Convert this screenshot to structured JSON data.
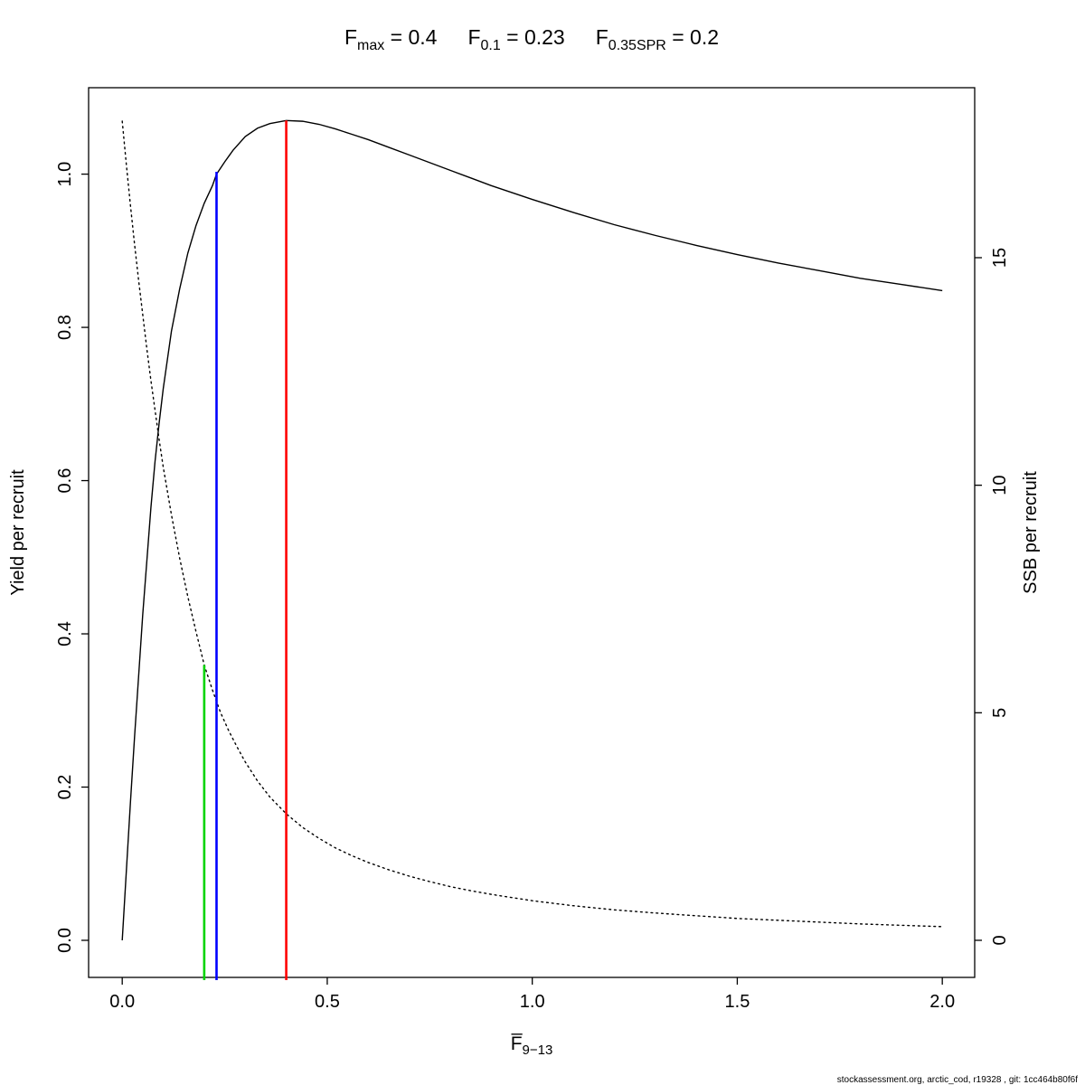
{
  "page": {
    "background": "#ffffff"
  },
  "footer": {
    "text": "stockassessment.org, arctic_cod, r19328 , git: 1cc464b80f6f"
  },
  "chart_data": {
    "type": "line",
    "title_parts": [
      {
        "base": "F",
        "sub": "max",
        "rest": " = 0.4"
      },
      {
        "base": "F",
        "sub": "0.1",
        "rest": " = 0.23"
      },
      {
        "base": "F",
        "sub": "0.35SPR",
        "rest": " = 0.2"
      }
    ],
    "reference_values": {
      "F_max": 0.4,
      "F_0.1": 0.23,
      "F_0.35SPR": 0.2
    },
    "x_axis": {
      "label_base": "F̅",
      "label_sub": "9−13",
      "ticks": [
        0,
        0.5,
        1,
        1.5,
        2
      ],
      "tick_labels": [
        "0.0",
        "0.5",
        "1.0",
        "1.5",
        "2.0"
      ],
      "range": [
        -0.082,
        2.079
      ]
    },
    "y_left": {
      "label": "Yield per recruit",
      "ticks": [
        0,
        0.2,
        0.4,
        0.6,
        0.8,
        1.0
      ],
      "tick_labels": [
        "0.0",
        "0.2",
        "0.4",
        "0.6",
        "0.8",
        "1.0"
      ],
      "range": [
        -0.0484,
        1.1128
      ]
    },
    "y_right": {
      "label": "SSB per recruit",
      "ticks": [
        0,
        5,
        10,
        15
      ],
      "tick_labels": [
        "0",
        "5",
        "10",
        "15"
      ],
      "range": [
        -0.815,
        18.735
      ]
    },
    "series": [
      {
        "name": "ssb-per-recruit",
        "axis": "right",
        "style": "dotted",
        "color": "#000000",
        "points": [
          [
            0,
            18
          ],
          [
            0.01,
            17.05
          ],
          [
            0.02,
            16.15
          ],
          [
            0.03,
            15.3
          ],
          [
            0.04,
            14.5
          ],
          [
            0.05,
            13.75
          ],
          [
            0.06,
            13.0
          ],
          [
            0.07,
            12.3
          ],
          [
            0.08,
            11.65
          ],
          [
            0.09,
            11.0
          ],
          [
            0.1,
            10.4
          ],
          [
            0.12,
            9.35
          ],
          [
            0.14,
            8.4
          ],
          [
            0.16,
            7.55
          ],
          [
            0.18,
            6.78
          ],
          [
            0.2,
            6.05
          ],
          [
            0.22,
            5.5
          ],
          [
            0.24,
            5.0
          ],
          [
            0.26,
            4.6
          ],
          [
            0.28,
            4.25
          ],
          [
            0.3,
            3.92
          ],
          [
            0.33,
            3.5
          ],
          [
            0.36,
            3.15
          ],
          [
            0.4,
            2.78
          ],
          [
            0.44,
            2.48
          ],
          [
            0.48,
            2.24
          ],
          [
            0.52,
            2.03
          ],
          [
            0.56,
            1.86
          ],
          [
            0.6,
            1.71
          ],
          [
            0.65,
            1.55
          ],
          [
            0.7,
            1.41
          ],
          [
            0.75,
            1.29
          ],
          [
            0.8,
            1.18
          ],
          [
            0.85,
            1.09
          ],
          [
            0.9,
            1.01
          ],
          [
            0.95,
            0.94
          ],
          [
            1,
            0.87
          ],
          [
            1.1,
            0.76
          ],
          [
            1.2,
            0.67
          ],
          [
            1.3,
            0.6
          ],
          [
            1.4,
            0.54
          ],
          [
            1.5,
            0.48
          ],
          [
            1.6,
            0.44
          ],
          [
            1.7,
            0.4
          ],
          [
            1.8,
            0.36
          ],
          [
            1.9,
            0.33
          ],
          [
            2,
            0.3
          ]
        ]
      },
      {
        "name": "yield-per-recruit",
        "axis": "left",
        "style": "solid",
        "color": "#000000",
        "points": [
          [
            0,
            0
          ],
          [
            0.01,
            0.09
          ],
          [
            0.02,
            0.18
          ],
          [
            0.03,
            0.265
          ],
          [
            0.04,
            0.345
          ],
          [
            0.05,
            0.425
          ],
          [
            0.06,
            0.495
          ],
          [
            0.07,
            0.565
          ],
          [
            0.08,
            0.625
          ],
          [
            0.09,
            0.675
          ],
          [
            0.1,
            0.72
          ],
          [
            0.12,
            0.795
          ],
          [
            0.14,
            0.85
          ],
          [
            0.16,
            0.897
          ],
          [
            0.18,
            0.933
          ],
          [
            0.2,
            0.962
          ],
          [
            0.22,
            0.985
          ],
          [
            0.23,
            1.0
          ],
          [
            0.25,
            1.016
          ],
          [
            0.27,
            1.031
          ],
          [
            0.3,
            1.049
          ],
          [
            0.33,
            1.06
          ],
          [
            0.36,
            1.066
          ],
          [
            0.4,
            1.07
          ],
          [
            0.44,
            1.069
          ],
          [
            0.48,
            1.065
          ],
          [
            0.52,
            1.059
          ],
          [
            0.56,
            1.052
          ],
          [
            0.6,
            1.045
          ],
          [
            0.65,
            1.035
          ],
          [
            0.7,
            1.025
          ],
          [
            0.75,
            1.015
          ],
          [
            0.8,
            1.005
          ],
          [
            0.85,
            0.995
          ],
          [
            0.9,
            0.985
          ],
          [
            0.95,
            0.976
          ],
          [
            1,
            0.967
          ],
          [
            1.1,
            0.95
          ],
          [
            1.2,
            0.934
          ],
          [
            1.3,
            0.92
          ],
          [
            1.4,
            0.907
          ],
          [
            1.5,
            0.895
          ],
          [
            1.6,
            0.884
          ],
          [
            1.7,
            0.874
          ],
          [
            1.8,
            0.864
          ],
          [
            1.9,
            0.856
          ],
          [
            2,
            0.848
          ]
        ]
      }
    ],
    "ref_lines": [
      {
        "name": "f-035spr-line",
        "x": 0.2,
        "top": 6.05,
        "axis": "right",
        "color": "#00d400"
      },
      {
        "name": "f-01-line",
        "x": 0.23,
        "top": 1.003,
        "axis": "left",
        "color": "#0000ff"
      },
      {
        "name": "f-max-line",
        "x": 0.4,
        "top": 1.07,
        "axis": "left",
        "color": "#ff0000"
      }
    ]
  }
}
